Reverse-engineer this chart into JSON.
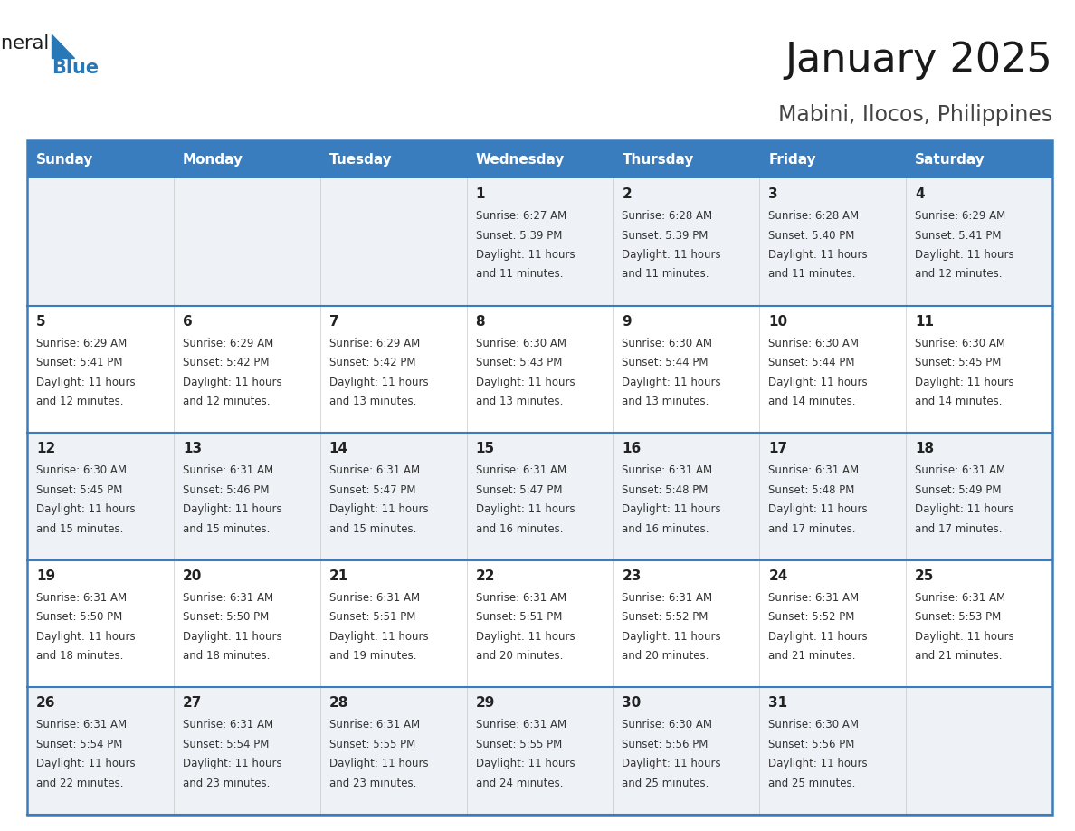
{
  "title": "January 2025",
  "subtitle": "Mabini, Ilocos, Philippines",
  "days_of_week": [
    "Sunday",
    "Monday",
    "Tuesday",
    "Wednesday",
    "Thursday",
    "Friday",
    "Saturday"
  ],
  "header_bg": "#3a7dbf",
  "header_text": "#ffffff",
  "row_bg_even": "#eef2f7",
  "row_bg_odd": "#ffffff",
  "border_color": "#3a7dbf",
  "day_number_color": "#222222",
  "text_color": "#333333",
  "title_color": "#1a1a1a",
  "subtitle_color": "#444444",
  "logo_general_color": "#1a1a1a",
  "logo_blue_color": "#2878b8",
  "calendar_data": [
    [
      {
        "day": "",
        "sunrise": "",
        "sunset": "",
        "daylight": ""
      },
      {
        "day": "",
        "sunrise": "",
        "sunset": "",
        "daylight": ""
      },
      {
        "day": "",
        "sunrise": "",
        "sunset": "",
        "daylight": ""
      },
      {
        "day": "1",
        "sunrise": "6:27 AM",
        "sunset": "5:39 PM",
        "daylight": "11 hours and 11 minutes"
      },
      {
        "day": "2",
        "sunrise": "6:28 AM",
        "sunset": "5:39 PM",
        "daylight": "11 hours and 11 minutes"
      },
      {
        "day": "3",
        "sunrise": "6:28 AM",
        "sunset": "5:40 PM",
        "daylight": "11 hours and 11 minutes"
      },
      {
        "day": "4",
        "sunrise": "6:29 AM",
        "sunset": "5:41 PM",
        "daylight": "11 hours and 12 minutes"
      }
    ],
    [
      {
        "day": "5",
        "sunrise": "6:29 AM",
        "sunset": "5:41 PM",
        "daylight": "11 hours and 12 minutes"
      },
      {
        "day": "6",
        "sunrise": "6:29 AM",
        "sunset": "5:42 PM",
        "daylight": "11 hours and 12 minutes"
      },
      {
        "day": "7",
        "sunrise": "6:29 AM",
        "sunset": "5:42 PM",
        "daylight": "11 hours and 13 minutes"
      },
      {
        "day": "8",
        "sunrise": "6:30 AM",
        "sunset": "5:43 PM",
        "daylight": "11 hours and 13 minutes"
      },
      {
        "day": "9",
        "sunrise": "6:30 AM",
        "sunset": "5:44 PM",
        "daylight": "11 hours and 13 minutes"
      },
      {
        "day": "10",
        "sunrise": "6:30 AM",
        "sunset": "5:44 PM",
        "daylight": "11 hours and 14 minutes"
      },
      {
        "day": "11",
        "sunrise": "6:30 AM",
        "sunset": "5:45 PM",
        "daylight": "11 hours and 14 minutes"
      }
    ],
    [
      {
        "day": "12",
        "sunrise": "6:30 AM",
        "sunset": "5:45 PM",
        "daylight": "11 hours and 15 minutes"
      },
      {
        "day": "13",
        "sunrise": "6:31 AM",
        "sunset": "5:46 PM",
        "daylight": "11 hours and 15 minutes"
      },
      {
        "day": "14",
        "sunrise": "6:31 AM",
        "sunset": "5:47 PM",
        "daylight": "11 hours and 15 minutes"
      },
      {
        "day": "15",
        "sunrise": "6:31 AM",
        "sunset": "5:47 PM",
        "daylight": "11 hours and 16 minutes"
      },
      {
        "day": "16",
        "sunrise": "6:31 AM",
        "sunset": "5:48 PM",
        "daylight": "11 hours and 16 minutes"
      },
      {
        "day": "17",
        "sunrise": "6:31 AM",
        "sunset": "5:48 PM",
        "daylight": "11 hours and 17 minutes"
      },
      {
        "day": "18",
        "sunrise": "6:31 AM",
        "sunset": "5:49 PM",
        "daylight": "11 hours and 17 minutes"
      }
    ],
    [
      {
        "day": "19",
        "sunrise": "6:31 AM",
        "sunset": "5:50 PM",
        "daylight": "11 hours and 18 minutes"
      },
      {
        "day": "20",
        "sunrise": "6:31 AM",
        "sunset": "5:50 PM",
        "daylight": "11 hours and 18 minutes"
      },
      {
        "day": "21",
        "sunrise": "6:31 AM",
        "sunset": "5:51 PM",
        "daylight": "11 hours and 19 minutes"
      },
      {
        "day": "22",
        "sunrise": "6:31 AM",
        "sunset": "5:51 PM",
        "daylight": "11 hours and 20 minutes"
      },
      {
        "day": "23",
        "sunrise": "6:31 AM",
        "sunset": "5:52 PM",
        "daylight": "11 hours and 20 minutes"
      },
      {
        "day": "24",
        "sunrise": "6:31 AM",
        "sunset": "5:52 PM",
        "daylight": "11 hours and 21 minutes"
      },
      {
        "day": "25",
        "sunrise": "6:31 AM",
        "sunset": "5:53 PM",
        "daylight": "11 hours and 21 minutes"
      }
    ],
    [
      {
        "day": "26",
        "sunrise": "6:31 AM",
        "sunset": "5:54 PM",
        "daylight": "11 hours and 22 minutes"
      },
      {
        "day": "27",
        "sunrise": "6:31 AM",
        "sunset": "5:54 PM",
        "daylight": "11 hours and 23 minutes"
      },
      {
        "day": "28",
        "sunrise": "6:31 AM",
        "sunset": "5:55 PM",
        "daylight": "11 hours and 23 minutes"
      },
      {
        "day": "29",
        "sunrise": "6:31 AM",
        "sunset": "5:55 PM",
        "daylight": "11 hours and 24 minutes"
      },
      {
        "day": "30",
        "sunrise": "6:30 AM",
        "sunset": "5:56 PM",
        "daylight": "11 hours and 25 minutes"
      },
      {
        "day": "31",
        "sunrise": "6:30 AM",
        "sunset": "5:56 PM",
        "daylight": "11 hours and 25 minutes"
      },
      {
        "day": "",
        "sunrise": "",
        "sunset": "",
        "daylight": ""
      }
    ]
  ]
}
